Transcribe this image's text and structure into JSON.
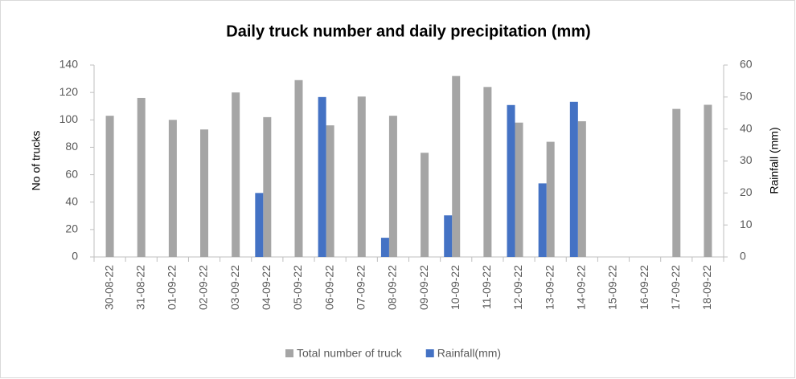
{
  "chart_data": {
    "type": "bar",
    "title": "Daily truck number and daily precipitation (mm)",
    "y_label": "No of trucks",
    "y2_label": "Rainfall  (mm)",
    "categories": [
      "30-08-22",
      "31-08-22",
      "01-09-22",
      "02-09-22",
      "03-09-22",
      "04-09-22",
      "05-09-22",
      "06-09-22",
      "07-09-22",
      "08-09-22",
      "09-09-22",
      "10-09-22",
      "11-09-22",
      "12-09-22",
      "13-09-22",
      "14-09-22",
      "15-09-22",
      "16-09-22",
      "17-09-22",
      "18-09-22"
    ],
    "series": [
      {
        "name": "Total number of truck",
        "color": "#a5a5a5",
        "values": [
          103,
          116,
          100,
          93,
          120,
          102,
          129,
          96,
          117,
          103,
          76,
          132,
          124,
          98,
          84,
          99,
          null,
          null,
          108,
          111
        ]
      },
      {
        "name": "Rainfall(mm)",
        "color": "#4472c4",
        "axis": "y2",
        "values": [
          null,
          null,
          null,
          null,
          null,
          20,
          null,
          50,
          null,
          6,
          null,
          13,
          null,
          47.5,
          23,
          48.5,
          null,
          null,
          null,
          null
        ]
      }
    ],
    "ylim": [
      0,
      140
    ],
    "yticks": [
      0,
      20,
      40,
      60,
      80,
      100,
      120,
      140
    ],
    "y2lim": [
      0,
      60
    ],
    "y2ticks": [
      0,
      10,
      20,
      30,
      40,
      50,
      60
    ],
    "legend": "bottom"
  }
}
